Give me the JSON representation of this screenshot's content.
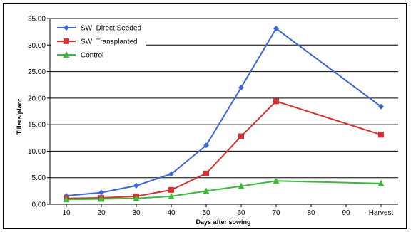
{
  "chart_data": {
    "type": "line",
    "title": "",
    "xlabel": "Days after sowing",
    "ylabel": "Tillers/plant",
    "categories": [
      "10",
      "20",
      "30",
      "40",
      "50",
      "60",
      "70",
      "80",
      "90",
      "Harvest"
    ],
    "ylim": [
      0,
      35
    ],
    "yticks": [
      "0.00",
      "5.00",
      "10.00",
      "15.00",
      "20.00",
      "25.00",
      "30.00",
      "35.00"
    ],
    "grid": "horizontal",
    "legend": "top-left",
    "series": [
      {
        "name": "SWI Direct Seeded",
        "color": "#3a66d6",
        "marker": "diamond",
        "values": [
          1.6,
          2.2,
          3.5,
          5.7,
          11.1,
          22.0,
          33.1,
          null,
          null,
          18.4
        ]
      },
      {
        "name": "SWI Transplanted",
        "color": "#d63030",
        "marker": "square",
        "values": [
          1.1,
          1.2,
          1.5,
          2.7,
          5.8,
          12.8,
          19.4,
          null,
          null,
          13.1
        ]
      },
      {
        "name": "Control",
        "color": "#3cb83c",
        "marker": "triangle",
        "values": [
          0.9,
          1.0,
          1.1,
          1.5,
          2.5,
          3.4,
          4.4,
          null,
          null,
          3.9
        ]
      }
    ]
  }
}
